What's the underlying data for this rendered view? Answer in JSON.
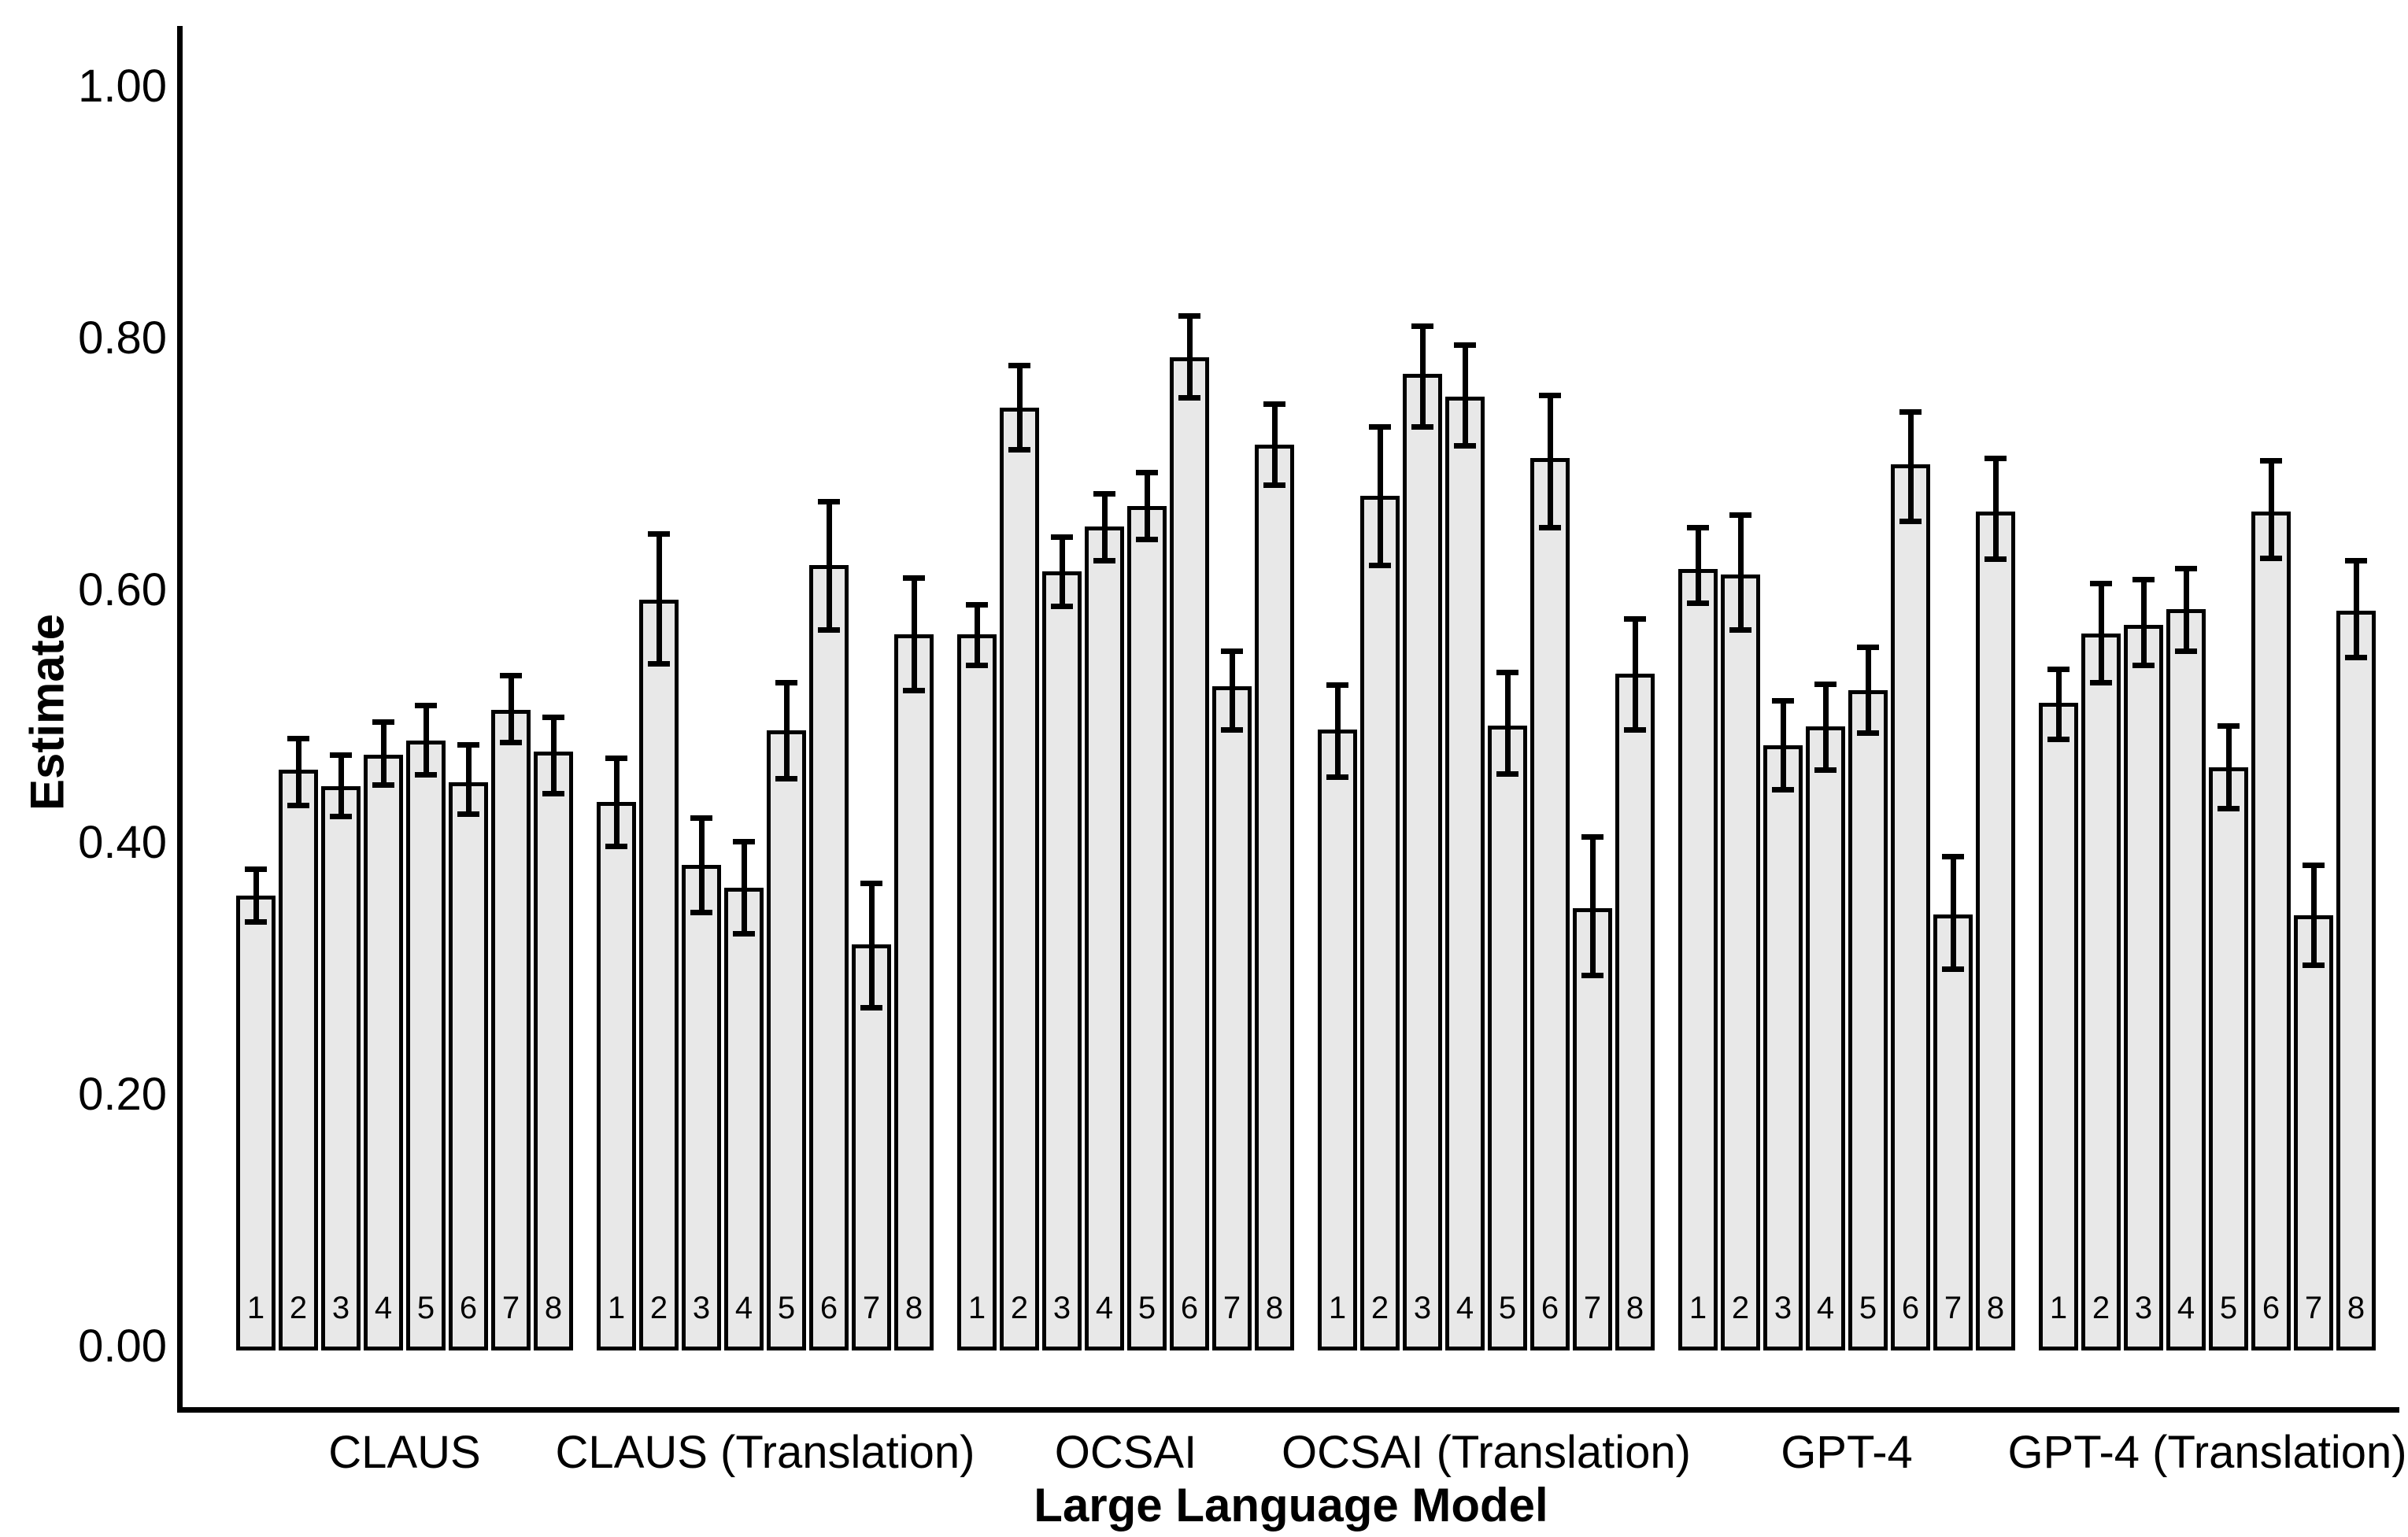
{
  "figure_title": "",
  "y_axis": {
    "title": "Estimate",
    "tick_labels": [
      "1.00",
      "0.80",
      "0.60",
      "0.40",
      "0.20",
      "0.00"
    ],
    "tick_values": [
      1.0,
      0.8,
      0.6,
      0.4,
      0.2,
      0.0
    ]
  },
  "x_axis": {
    "title": "Large Language Model"
  },
  "chart_data": {
    "type": "bar",
    "title": "",
    "xlabel": "Large Language Model",
    "ylabel": "Estimate",
    "ylim": [
      0.0,
      1.0
    ],
    "grid": false,
    "legend": false,
    "bar_labels": [
      "1",
      "2",
      "3",
      "4",
      "5",
      "6",
      "7",
      "8"
    ],
    "colors": {
      "bar_fill": "#e8e8e8",
      "bar_border": "#000000",
      "error_bar": "#000000",
      "background": "#ffffff"
    },
    "error_bar_style": "caps",
    "groups": [
      {
        "label": "CLAUS",
        "values": [
          0.358,
          0.458,
          0.445,
          0.47,
          0.481,
          0.448,
          0.505,
          0.472
        ],
        "error_low": [
          0.337,
          0.43,
          0.421,
          0.446,
          0.454,
          0.423,
          0.48,
          0.439
        ],
        "error_high": [
          0.379,
          0.483,
          0.47,
          0.496,
          0.509,
          0.478,
          0.533,
          0.5
        ]
      },
      {
        "label": "CLAUS (Translation)",
        "values": [
          0.432,
          0.593,
          0.382,
          0.364,
          0.489,
          0.62,
          0.319,
          0.565
        ],
        "error_low": [
          0.397,
          0.542,
          0.345,
          0.328,
          0.451,
          0.569,
          0.269,
          0.521
        ],
        "error_high": [
          0.467,
          0.645,
          0.42,
          0.401,
          0.527,
          0.671,
          0.368,
          0.61
        ]
      },
      {
        "label": "OCSAI",
        "values": [
          0.565,
          0.745,
          0.615,
          0.651,
          0.667,
          0.785,
          0.524,
          0.716
        ],
        "error_low": [
          0.541,
          0.712,
          0.588,
          0.624,
          0.641,
          0.753,
          0.49,
          0.684
        ],
        "error_high": [
          0.589,
          0.779,
          0.643,
          0.677,
          0.694,
          0.818,
          0.552,
          0.748
        ]
      },
      {
        "label": "OCSAI (Translation)",
        "values": [
          0.49,
          0.675,
          0.772,
          0.754,
          0.493,
          0.705,
          0.348,
          0.534
        ],
        "error_low": [
          0.452,
          0.62,
          0.73,
          0.715,
          0.455,
          0.65,
          0.295,
          0.49
        ],
        "error_high": [
          0.525,
          0.73,
          0.81,
          0.795,
          0.535,
          0.755,
          0.405,
          0.578
        ]
      },
      {
        "label": "GPT-4",
        "values": [
          0.617,
          0.613,
          0.477,
          0.492,
          0.521,
          0.7,
          0.343,
          0.663
        ],
        "error_low": [
          0.59,
          0.569,
          0.442,
          0.458,
          0.487,
          0.655,
          0.3,
          0.625
        ],
        "error_high": [
          0.65,
          0.66,
          0.513,
          0.526,
          0.555,
          0.742,
          0.389,
          0.705
        ]
      },
      {
        "label": "GPT-4 (Translation)",
        "values": [
          0.511,
          0.566,
          0.573,
          0.585,
          0.46,
          0.663,
          0.342,
          0.584
        ],
        "error_low": [
          0.482,
          0.527,
          0.541,
          0.552,
          0.427,
          0.626,
          0.303,
          0.547
        ],
        "error_high": [
          0.538,
          0.606,
          0.609,
          0.618,
          0.493,
          0.703,
          0.382,
          0.624
        ]
      }
    ]
  }
}
